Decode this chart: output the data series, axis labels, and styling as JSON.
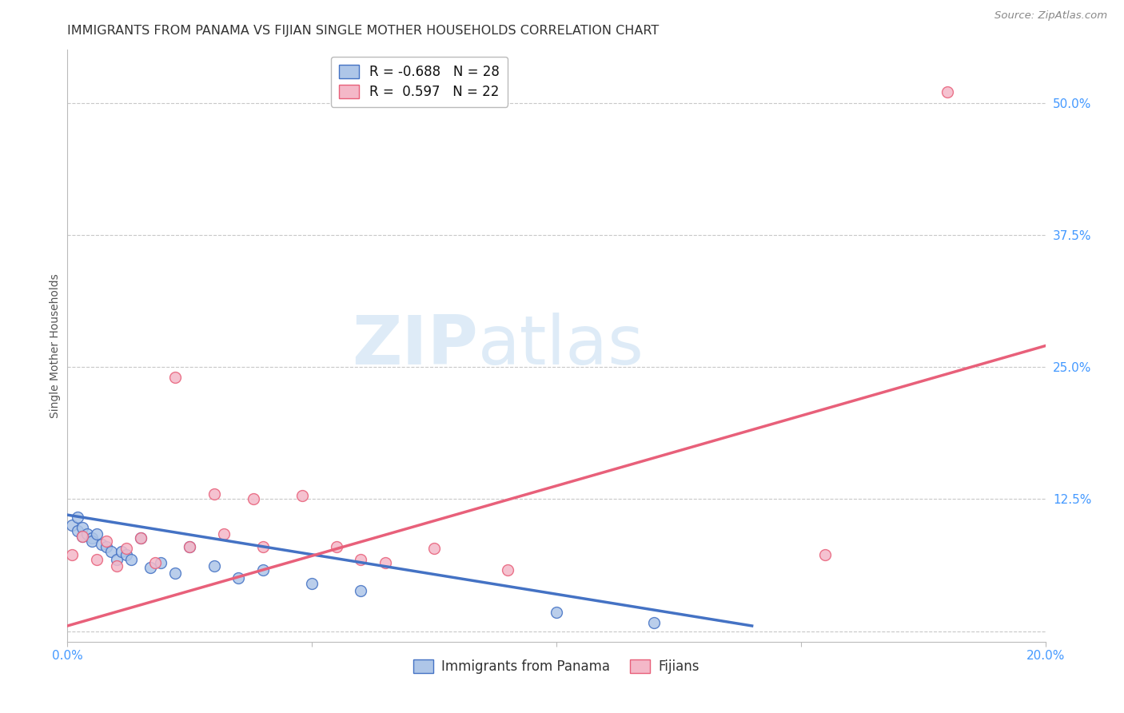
{
  "title": "IMMIGRANTS FROM PANAMA VS FIJIAN SINGLE MOTHER HOUSEHOLDS CORRELATION CHART",
  "source": "Source: ZipAtlas.com",
  "ylabel": "Single Mother Households",
  "xlim": [
    0.0,
    0.2
  ],
  "ylim": [
    -0.01,
    0.55
  ],
  "x_ticks": [
    0.0,
    0.05,
    0.1,
    0.15,
    0.2
  ],
  "x_tick_labels": [
    "0.0%",
    "",
    "",
    "",
    "20.0%"
  ],
  "y_ticks": [
    0.0,
    0.125,
    0.25,
    0.375,
    0.5
  ],
  "y_tick_labels": [
    "",
    "12.5%",
    "25.0%",
    "37.5%",
    "50.0%"
  ],
  "grid_color": "#c8c8c8",
  "background_color": "#ffffff",
  "blue_scatter_x": [
    0.001,
    0.002,
    0.002,
    0.003,
    0.003,
    0.004,
    0.005,
    0.005,
    0.006,
    0.007,
    0.008,
    0.009,
    0.01,
    0.011,
    0.012,
    0.013,
    0.015,
    0.017,
    0.019,
    0.022,
    0.025,
    0.03,
    0.035,
    0.04,
    0.05,
    0.06,
    0.1,
    0.12
  ],
  "blue_scatter_y": [
    0.1,
    0.108,
    0.095,
    0.098,
    0.09,
    0.092,
    0.088,
    0.085,
    0.092,
    0.082,
    0.08,
    0.075,
    0.068,
    0.075,
    0.072,
    0.068,
    0.088,
    0.06,
    0.065,
    0.055,
    0.08,
    0.062,
    0.05,
    0.058,
    0.045,
    0.038,
    0.018,
    0.008
  ],
  "pink_scatter_x": [
    0.001,
    0.003,
    0.006,
    0.008,
    0.01,
    0.012,
    0.015,
    0.018,
    0.022,
    0.025,
    0.03,
    0.032,
    0.038,
    0.04,
    0.048,
    0.055,
    0.06,
    0.065,
    0.075,
    0.09,
    0.155,
    0.18
  ],
  "pink_scatter_y": [
    0.072,
    0.09,
    0.068,
    0.085,
    0.062,
    0.078,
    0.088,
    0.065,
    0.24,
    0.08,
    0.13,
    0.092,
    0.125,
    0.08,
    0.128,
    0.08,
    0.068,
    0.065,
    0.078,
    0.058,
    0.072,
    0.51
  ],
  "blue_line_x": [
    0.0,
    0.14
  ],
  "blue_line_y": [
    0.11,
    0.005
  ],
  "pink_line_x": [
    0.0,
    0.2
  ],
  "pink_line_y": [
    0.005,
    0.27
  ],
  "blue_color": "#aec6e8",
  "pink_color": "#f4b8c8",
  "blue_line_color": "#4472c4",
  "pink_line_color": "#e8607a",
  "legend_R_blue": "R = -0.688",
  "legend_N_blue": "N = 28",
  "legend_R_pink": "R =  0.597",
  "legend_N_pink": "N = 22",
  "label_blue": "Immigrants from Panama",
  "label_pink": "Fijians",
  "watermark_zip": "ZIP",
  "watermark_atlas": "atlas",
  "marker_size": 100,
  "title_fontsize": 11.5,
  "axis_label_fontsize": 10,
  "tick_fontsize": 11,
  "legend_fontsize": 12,
  "source_fontsize": 9.5
}
